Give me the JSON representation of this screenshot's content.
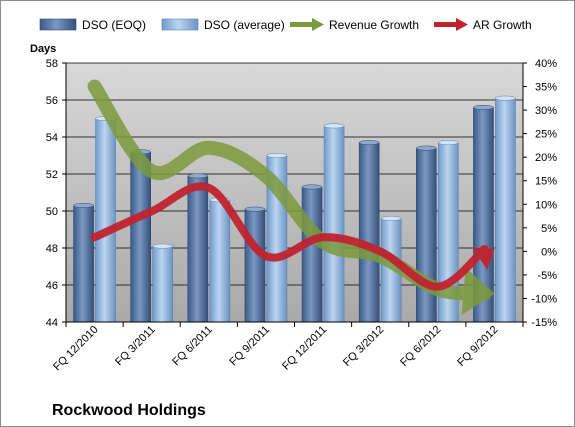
{
  "chart_data": {
    "type": "bar",
    "title": "Rockwood Holdings",
    "ylabel": "Days",
    "categories": [
      "FQ 12/2010",
      "FQ 3/2011",
      "FQ 6/2011",
      "FQ 9/2011",
      "FQ 12/2011",
      "FQ 3/2012",
      "FQ 6/2012",
      "FQ 9/2012"
    ],
    "ylim": [
      44,
      58
    ],
    "yticks": [
      "44",
      "46",
      "48",
      "50",
      "52",
      "54",
      "56",
      "58"
    ],
    "y2lim": [
      -15,
      40
    ],
    "y2ticks": [
      "-15%",
      "-10%",
      "-5%",
      "0%",
      "5%",
      "10%",
      "15%",
      "20%",
      "25%",
      "30%",
      "35%",
      "40%"
    ],
    "series": [
      {
        "name": "DSO (EOQ)",
        "type": "bar",
        "axis": "left",
        "color": "#4f6f9f",
        "values": [
          50.3,
          53.2,
          51.9,
          50.1,
          51.3,
          53.7,
          53.4,
          55.6
        ]
      },
      {
        "name": "DSO (average)",
        "type": "bar",
        "axis": "left",
        "color": "#8fb4de",
        "values": [
          55.0,
          48.1,
          50.6,
          53.0,
          54.6,
          49.6,
          53.7,
          56.1
        ]
      },
      {
        "name": "Revenue Growth",
        "type": "line",
        "axis": "right",
        "color": "#7b9a3c",
        "values": [
          35,
          17,
          22,
          16,
          2,
          -1,
          -8,
          -9
        ]
      },
      {
        "name": "AR Growth",
        "type": "line",
        "axis": "right",
        "color": "#c0232e",
        "values": [
          3,
          8.5,
          13.5,
          -1,
          3,
          0,
          -7.5,
          0.5
        ]
      }
    ],
    "background_color": "#c0c0c0",
    "grid": true,
    "legend_position": "top"
  }
}
